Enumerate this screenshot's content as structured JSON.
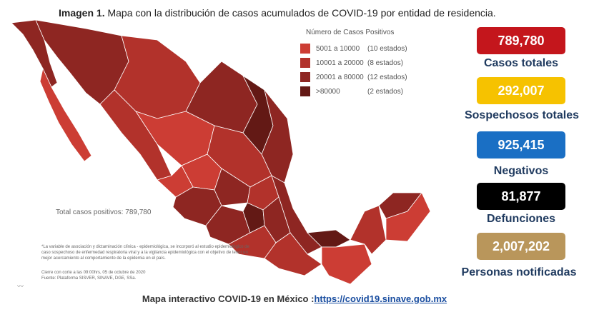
{
  "title": {
    "bold": "Imagen 1.",
    "text": "Mapa con la distribución de casos acumulados de COVID-19 por entidad de residencia."
  },
  "legend": {
    "title": "Número de Casos Positivos",
    "items": [
      {
        "range": "5001 a 10000",
        "count": "(10 estados)",
        "color": "#cc3d34"
      },
      {
        "range": "10001 a 20000",
        "count": "(8 estados)",
        "color": "#b2322b"
      },
      {
        "range": "20001 a 80000",
        "count": "(12 estados)",
        "color": "#8e2622"
      },
      {
        "range": ">80000",
        "count": "(2 estados)",
        "color": "#631915"
      }
    ]
  },
  "map": {
    "total_label": "Total casos positivos: 789,780"
  },
  "note": "*La variable de asociación y dictaminación clínica - epidemiológica, se incorporó al estudio epidemiológico de caso sospechoso de enfermedad respiratoria viral y a la vigilancia epidemiológica con el objetivo de tener un mejor acercamiento al comportamiento de la epidemia en el país.",
  "cutoff": {
    "line1": "Cierre con corte a las 09:00hrs, 05 de octubre de 2020",
    "line2": "Fuente: Plataforma SISVER, SINAVE, DGE, SSa."
  },
  "stats": [
    {
      "value": "789,780",
      "label": "Casos totales",
      "color": "#c4161c"
    },
    {
      "value": "292,007",
      "label": "Sospechosos totales",
      "color": "#f6c200"
    },
    {
      "value": "925,415",
      "label": "Negativos",
      "color": "#1a6fc4"
    },
    {
      "value": "81,877",
      "label": "Defunciones",
      "color": "#000000"
    },
    {
      "value": "2,007,202",
      "label": "Personas notificadas",
      "color": "#b9965b"
    }
  ],
  "footer": {
    "text": "Mapa interactivo COVID-19 en México :",
    "link": "https://covid19.sinave.gob.mx"
  }
}
